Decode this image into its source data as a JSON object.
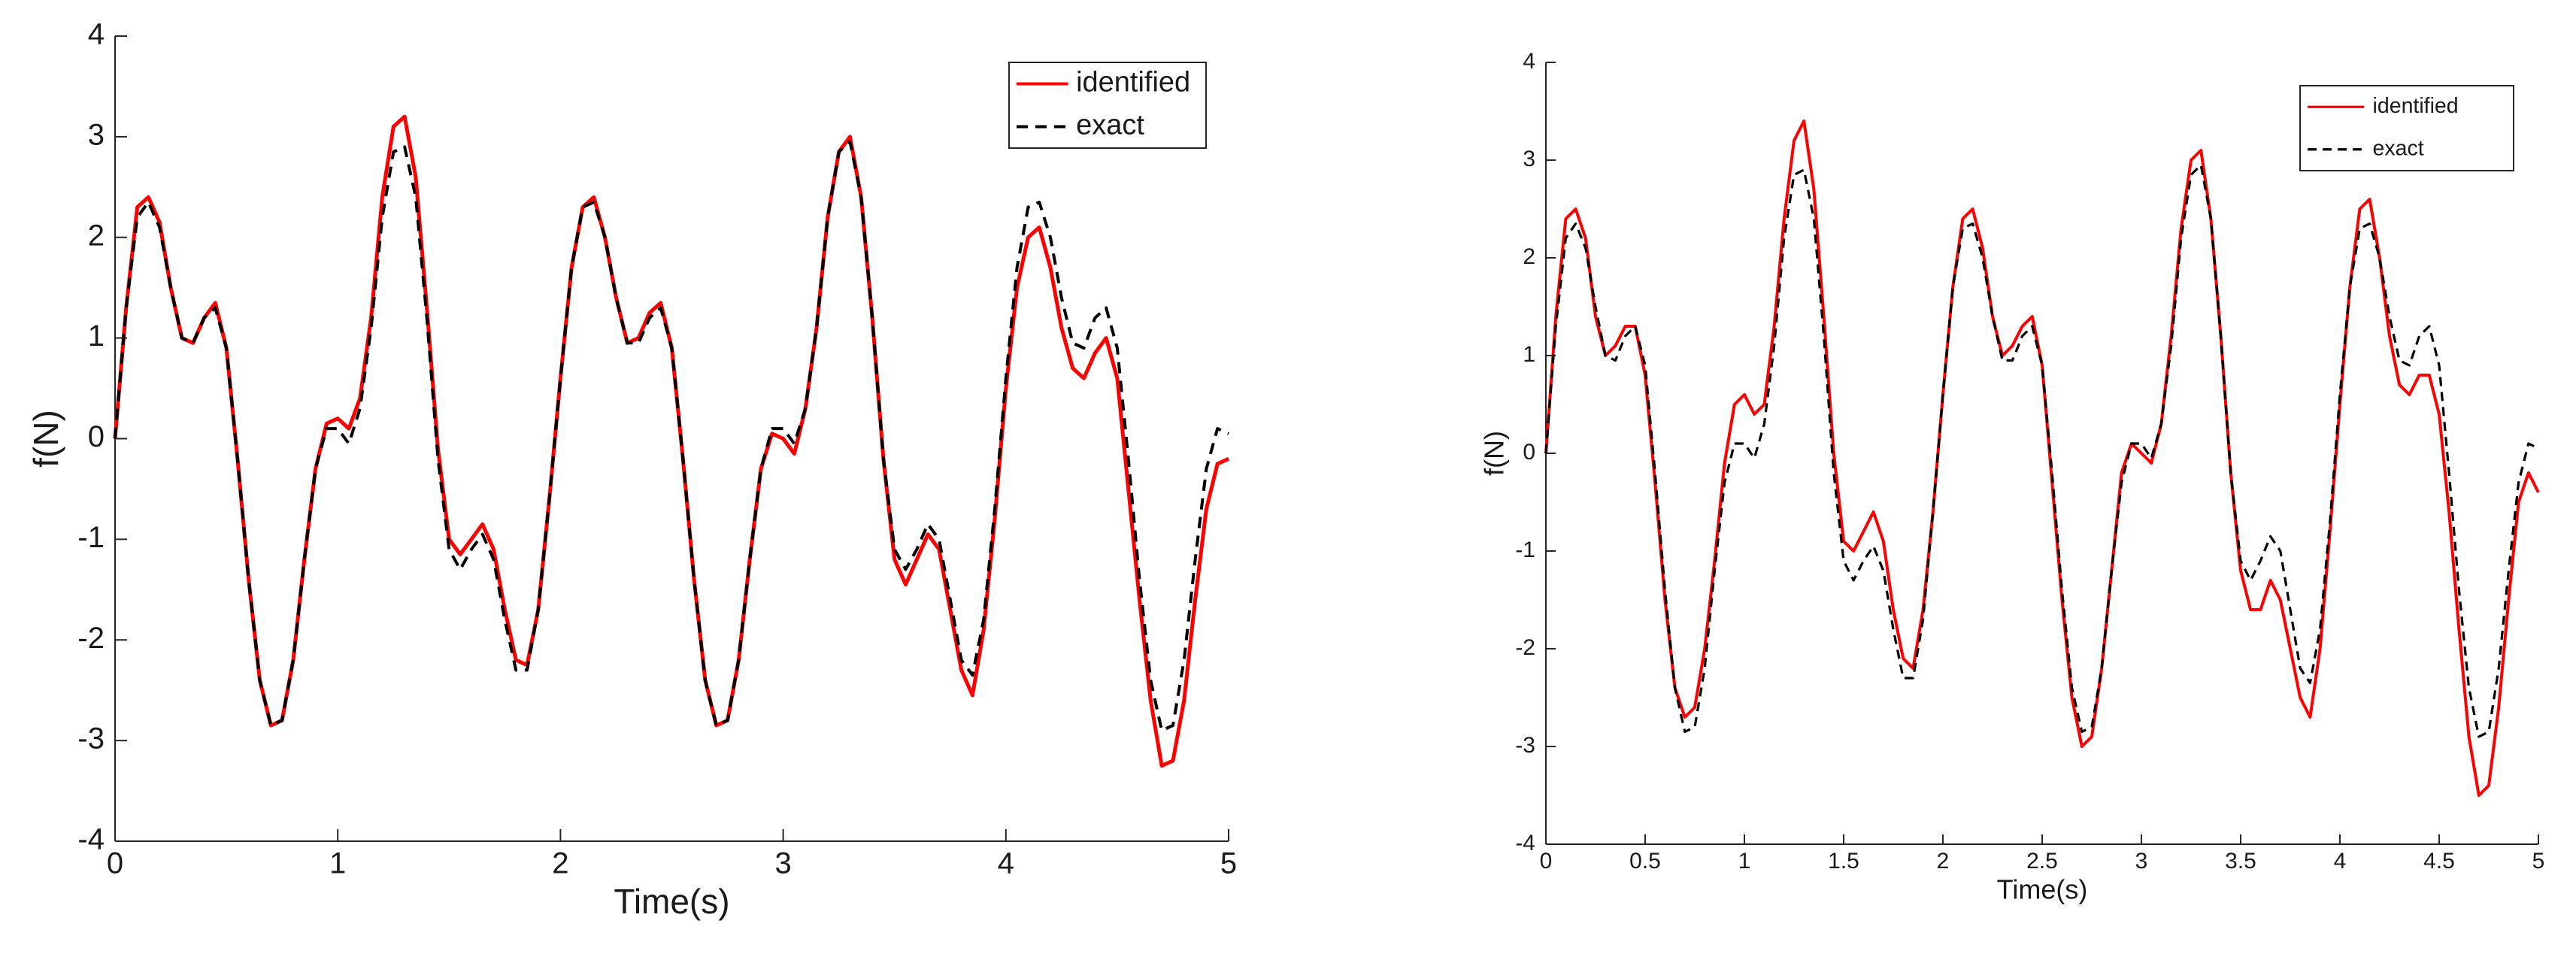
{
  "chart_data": [
    {
      "type": "line",
      "xlabel": "Time(s)",
      "ylabel": "f(N)",
      "xlim": [
        0,
        5
      ],
      "ylim": [
        -4,
        4
      ],
      "xticks": [
        0,
        1,
        2,
        3,
        4,
        5
      ],
      "yticks": [
        -4,
        -3,
        -2,
        -1,
        0,
        1,
        2,
        3,
        4
      ],
      "legend": "upper right",
      "x": [
        0,
        0.05,
        0.1,
        0.15,
        0.2,
        0.25,
        0.3,
        0.35,
        0.4,
        0.45,
        0.5,
        0.55,
        0.6,
        0.65,
        0.7,
        0.75,
        0.8,
        0.85,
        0.9,
        0.95,
        1,
        1.05,
        1.1,
        1.15,
        1.2,
        1.25,
        1.3,
        1.35,
        1.4,
        1.45,
        1.5,
        1.55,
        1.6,
        1.65,
        1.7,
        1.75,
        1.8,
        1.85,
        1.9,
        1.95,
        2,
        2.05,
        2.1,
        2.15,
        2.2,
        2.25,
        2.3,
        2.35,
        2.4,
        2.45,
        2.5,
        2.55,
        2.6,
        2.65,
        2.7,
        2.75,
        2.8,
        2.85,
        2.9,
        2.95,
        3,
        3.05,
        3.1,
        3.15,
        3.2,
        3.25,
        3.3,
        3.35,
        3.4,
        3.45,
        3.5,
        3.55,
        3.6,
        3.65,
        3.7,
        3.75,
        3.8,
        3.85,
        3.9,
        3.95,
        4,
        4.05,
        4.1,
        4.15,
        4.2,
        4.25,
        4.3,
        4.35,
        4.4,
        4.45,
        4.5,
        4.55,
        4.6,
        4.65,
        4.7,
        4.75,
        4.8,
        4.85,
        4.9,
        4.95,
        5
      ],
      "series": [
        {
          "name": "identified",
          "color": "#ff0000",
          "line_style": "solid",
          "values": [
            0,
            1.3,
            2.3,
            2.4,
            2.15,
            1.5,
            1.0,
            0.95,
            1.2,
            1.35,
            0.9,
            -0.2,
            -1.4,
            -2.4,
            -2.85,
            -2.8,
            -2.2,
            -1.2,
            -0.3,
            0.15,
            0.2,
            0.1,
            0.4,
            1.2,
            2.4,
            3.1,
            3.2,
            2.6,
            1.3,
            -0.1,
            -1.0,
            -1.15,
            -1.0,
            -0.85,
            -1.1,
            -1.7,
            -2.2,
            -2.25,
            -1.7,
            -0.6,
            0.6,
            1.7,
            2.3,
            2.4,
            2.0,
            1.4,
            0.95,
            1.0,
            1.25,
            1.35,
            0.9,
            -0.2,
            -1.4,
            -2.4,
            -2.85,
            -2.8,
            -2.2,
            -1.2,
            -0.3,
            0.05,
            0.0,
            -0.15,
            0.3,
            1.1,
            2.2,
            2.85,
            3.0,
            2.4,
            1.2,
            -0.2,
            -1.2,
            -1.45,
            -1.2,
            -0.95,
            -1.1,
            -1.7,
            -2.3,
            -2.55,
            -1.9,
            -0.8,
            0.5,
            1.5,
            2.0,
            2.1,
            1.7,
            1.1,
            0.7,
            0.6,
            0.85,
            1.0,
            0.6,
            -0.5,
            -1.6,
            -2.6,
            -3.25,
            -3.2,
            -2.6,
            -1.6,
            -0.7,
            -0.25,
            -0.2
          ]
        },
        {
          "name": "exact",
          "color": "#000000",
          "line_style": "dashed",
          "values": [
            0,
            1.3,
            2.2,
            2.35,
            2.1,
            1.5,
            1.0,
            0.95,
            1.2,
            1.3,
            0.9,
            -0.2,
            -1.4,
            -2.4,
            -2.85,
            -2.8,
            -2.2,
            -1.2,
            -0.3,
            0.1,
            0.1,
            -0.05,
            0.3,
            1.1,
            2.2,
            2.85,
            2.9,
            2.4,
            1.2,
            -0.2,
            -1.1,
            -1.3,
            -1.1,
            -0.95,
            -1.2,
            -1.8,
            -2.3,
            -2.3,
            -1.7,
            -0.6,
            0.6,
            1.7,
            2.3,
            2.35,
            2.0,
            1.4,
            0.95,
            0.95,
            1.2,
            1.3,
            0.9,
            -0.2,
            -1.4,
            -2.4,
            -2.85,
            -2.8,
            -2.2,
            -1.2,
            -0.3,
            0.1,
            0.1,
            -0.05,
            0.3,
            1.1,
            2.2,
            2.85,
            2.95,
            2.4,
            1.2,
            -0.2,
            -1.1,
            -1.3,
            -1.1,
            -0.85,
            -1.0,
            -1.6,
            -2.2,
            -2.35,
            -1.8,
            -0.7,
            0.6,
            1.7,
            2.3,
            2.35,
            2.0,
            1.4,
            0.95,
            0.9,
            1.2,
            1.3,
            0.9,
            -0.2,
            -1.4,
            -2.4,
            -2.9,
            -2.85,
            -2.2,
            -1.2,
            -0.3,
            0.1,
            0.05
          ]
        }
      ]
    },
    {
      "type": "line",
      "xlabel": "Time(s)",
      "ylabel": "f(N)",
      "xlim": [
        0,
        5
      ],
      "ylim": [
        -4,
        4
      ],
      "xticks": [
        0,
        0.5,
        1,
        1.5,
        2,
        2.5,
        3,
        3.5,
        4,
        4.5,
        5
      ],
      "yticks": [
        -4,
        -3,
        -2,
        -1,
        0,
        1,
        2,
        3,
        4
      ],
      "legend": "upper right",
      "x": [
        0,
        0.05,
        0.1,
        0.15,
        0.2,
        0.25,
        0.3,
        0.35,
        0.4,
        0.45,
        0.5,
        0.55,
        0.6,
        0.65,
        0.7,
        0.75,
        0.8,
        0.85,
        0.9,
        0.95,
        1,
        1.05,
        1.1,
        1.15,
        1.2,
        1.25,
        1.3,
        1.35,
        1.4,
        1.45,
        1.5,
        1.55,
        1.6,
        1.65,
        1.7,
        1.75,
        1.8,
        1.85,
        1.9,
        1.95,
        2,
        2.05,
        2.1,
        2.15,
        2.2,
        2.25,
        2.3,
        2.35,
        2.4,
        2.45,
        2.5,
        2.55,
        2.6,
        2.65,
        2.7,
        2.75,
        2.8,
        2.85,
        2.9,
        2.95,
        3,
        3.05,
        3.1,
        3.15,
        3.2,
        3.25,
        3.3,
        3.35,
        3.4,
        3.45,
        3.5,
        3.55,
        3.6,
        3.65,
        3.7,
        3.75,
        3.8,
        3.85,
        3.9,
        3.95,
        4,
        4.05,
        4.1,
        4.15,
        4.2,
        4.25,
        4.3,
        4.35,
        4.4,
        4.45,
        4.5,
        4.55,
        4.6,
        4.65,
        4.7,
        4.75,
        4.8,
        4.85,
        4.9,
        4.95,
        5
      ],
      "series": [
        {
          "name": "identified",
          "color": "#ff0000",
          "line_style": "solid",
          "values": [
            0,
            1.4,
            2.4,
            2.5,
            2.2,
            1.4,
            1.0,
            1.1,
            1.3,
            1.3,
            0.8,
            -0.3,
            -1.5,
            -2.4,
            -2.7,
            -2.6,
            -2.0,
            -1.1,
            -0.1,
            0.5,
            0.6,
            0.4,
            0.5,
            1.3,
            2.4,
            3.2,
            3.4,
            2.7,
            1.4,
            0.0,
            -0.9,
            -1.0,
            -0.8,
            -0.6,
            -0.9,
            -1.6,
            -2.1,
            -2.2,
            -1.6,
            -0.6,
            0.6,
            1.7,
            2.4,
            2.5,
            2.1,
            1.4,
            1.0,
            1.1,
            1.3,
            1.4,
            0.9,
            -0.3,
            -1.5,
            -2.5,
            -3.0,
            -2.9,
            -2.2,
            -1.2,
            -0.2,
            0.1,
            0.0,
            -0.1,
            0.3,
            1.2,
            2.3,
            3.0,
            3.1,
            2.4,
            1.2,
            -0.2,
            -1.2,
            -1.6,
            -1.6,
            -1.3,
            -1.5,
            -2.0,
            -2.5,
            -2.7,
            -2.0,
            -0.8,
            0.5,
            1.7,
            2.5,
            2.6,
            2.0,
            1.2,
            0.7,
            0.6,
            0.8,
            0.8,
            0.4,
            -0.6,
            -1.8,
            -2.9,
            -3.5,
            -3.4,
            -2.6,
            -1.5,
            -0.5,
            -0.2,
            -0.4
          ]
        },
        {
          "name": "exact",
          "color": "#000000",
          "line_style": "dashed",
          "values": [
            0,
            1.3,
            2.2,
            2.35,
            2.1,
            1.5,
            1.0,
            0.95,
            1.2,
            1.3,
            0.9,
            -0.2,
            -1.4,
            -2.4,
            -2.85,
            -2.8,
            -2.2,
            -1.2,
            -0.3,
            0.1,
            0.1,
            -0.05,
            0.3,
            1.1,
            2.2,
            2.85,
            2.9,
            2.4,
            1.2,
            -0.2,
            -1.1,
            -1.3,
            -1.1,
            -0.95,
            -1.2,
            -1.8,
            -2.3,
            -2.3,
            -1.7,
            -0.6,
            0.6,
            1.7,
            2.3,
            2.35,
            2.0,
            1.4,
            0.95,
            0.95,
            1.2,
            1.3,
            0.9,
            -0.2,
            -1.4,
            -2.4,
            -2.85,
            -2.8,
            -2.2,
            -1.2,
            -0.3,
            0.1,
            0.1,
            -0.05,
            0.3,
            1.1,
            2.2,
            2.85,
            2.95,
            2.4,
            1.2,
            -0.2,
            -1.1,
            -1.3,
            -1.1,
            -0.85,
            -1.0,
            -1.6,
            -2.2,
            -2.35,
            -1.8,
            -0.7,
            0.6,
            1.7,
            2.3,
            2.35,
            2.0,
            1.4,
            0.95,
            0.9,
            1.2,
            1.3,
            0.9,
            -0.2,
            -1.4,
            -2.4,
            -2.9,
            -2.85,
            -2.2,
            -1.2,
            -0.3,
            0.1,
            0.05
          ]
        }
      ]
    }
  ]
}
